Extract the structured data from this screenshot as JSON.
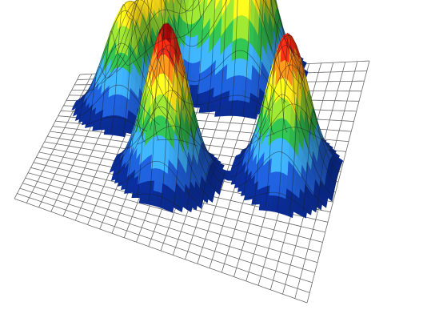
{
  "chart_data": {
    "type": "surface3d",
    "title": "",
    "xlabel": "",
    "ylabel": "",
    "zlabel": "",
    "grid": true,
    "legend": "none",
    "colormap": [
      "#0a2a8c",
      "#1d58c8",
      "#39a3ea",
      "#2fb24a",
      "#8fd12e",
      "#ffe21a",
      "#ff8b1a",
      "#ea2a14",
      "#9a0a0a"
    ],
    "wireframe_color": "#1e1e1e",
    "base_grid_color": "#6a6a6a",
    "peaks": [
      {
        "x": 0.22,
        "y": 0.28,
        "height": 0.62
      },
      {
        "x": 0.29,
        "y": 0.12,
        "height": 0.7
      },
      {
        "x": 0.48,
        "y": 0.07,
        "height": 0.62
      },
      {
        "x": 0.61,
        "y": 0.1,
        "height": 1.0
      },
      {
        "x": 0.44,
        "y": 0.63,
        "height": 0.95
      },
      {
        "x": 0.83,
        "y": 0.52,
        "height": 0.88
      }
    ]
  }
}
